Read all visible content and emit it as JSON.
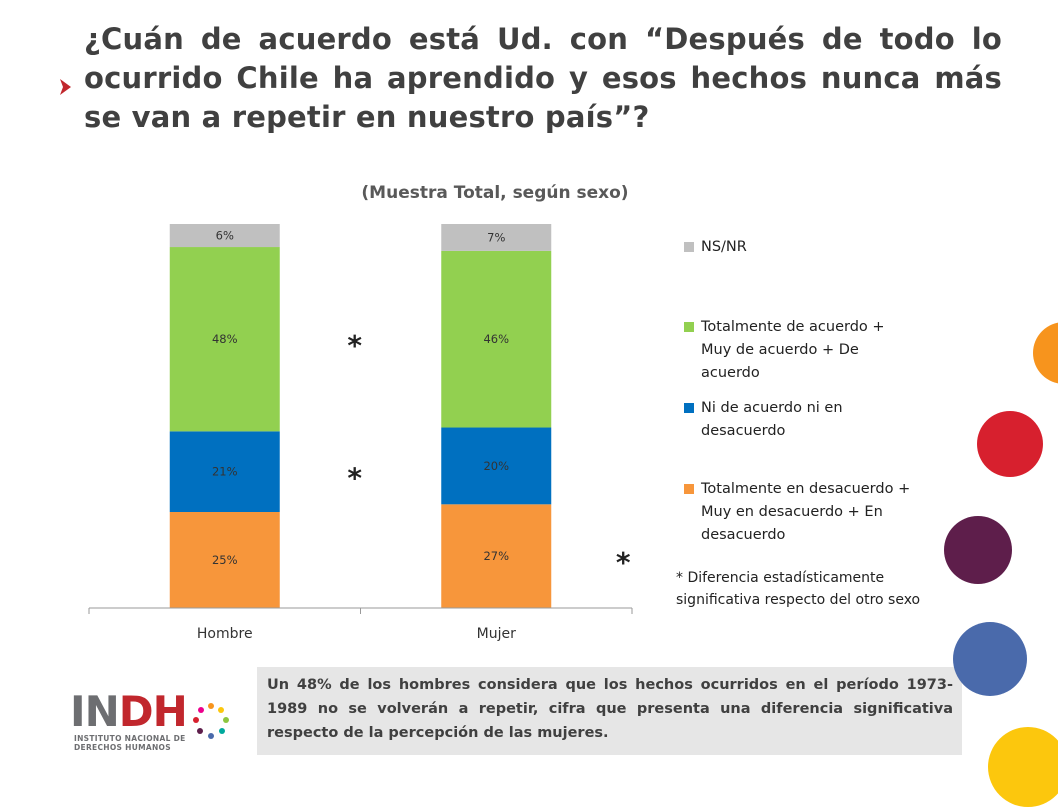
{
  "header": {
    "title": "¿Cuán de acuerdo está Ud. con “Después de todo lo ocurrido Chile ha aprendido y esos hechos nunca más se van a repetir en nuestro país”?"
  },
  "chart_data": {
    "type": "bar",
    "stacked": true,
    "title": "(Muestra Total, según sexo)",
    "categories": [
      "Hombre",
      "Mujer"
    ],
    "ylim": [
      0,
      100
    ],
    "grid": false,
    "legend_position": "right",
    "series": [
      {
        "name": "Totalmente en desacuerdo + Muy en desacuerdo + En desacuerdo",
        "color": "#f7963b",
        "values": [
          25,
          27
        ],
        "labels": [
          "25%",
          "27%"
        ]
      },
      {
        "name": "Ni de acuerdo ni en desacuerdo",
        "color": "#0070c0",
        "values": [
          21,
          20
        ],
        "labels": [
          "21%",
          "20%"
        ]
      },
      {
        "name": "Totalmente de acuerdo + Muy de acuerdo + De acuerdo",
        "color": "#92d050",
        "values": [
          48,
          46
        ],
        "labels": [
          "48%",
          "46%"
        ]
      },
      {
        "name": "NS/NR",
        "color": "#c0c0c0",
        "values": [
          6,
          7
        ],
        "labels": [
          "6%",
          "7%"
        ]
      }
    ],
    "legend_order": [
      "NS/NR",
      "Totalmente de acuerdo + Muy de acuerdo + De acuerdo",
      "Ni de acuerdo ni en desacuerdo",
      "Totalmente en desacuerdo + Muy en desacuerdo + En desacuerdo"
    ],
    "significance_marks": [
      {
        "category": "Hombre",
        "series": "Totalmente de acuerdo + Muy de acuerdo + De acuerdo",
        "mark": "*"
      },
      {
        "category": "Hombre",
        "series": "Ni de acuerdo ni en desacuerdo",
        "mark": "*"
      },
      {
        "category": "Mujer",
        "series": "Totalmente en desacuerdo + Muy en desacuerdo + En desacuerdo",
        "mark": "*"
      }
    ],
    "legend_lines": {
      "nsnr": [
        "NS/NR"
      ],
      "acuerdo": [
        "Totalmente de acuerdo +",
        "Muy de acuerdo + De",
        "acuerdo"
      ],
      "ni": [
        "Ni de acuerdo ni en",
        "desacuerdo"
      ],
      "desacuerdo": [
        "Totalmente en desacuerdo +",
        "Muy en desacuerdo + En",
        "desacuerdo"
      ]
    }
  },
  "footnote": {
    "line1": "* Diferencia estadísticamente",
    "line2": "significativa respecto del otro sexo"
  },
  "summary": {
    "text": "Un 48% de los hombres considera que los hechos ocurridos en el período 1973-1989 no se volverán a repetir, cifra que presenta una diferencia significativa respecto de la percepción de las mujeres."
  },
  "logo": {
    "main_prefix": "IN",
    "main_accent": "DH",
    "sub_line1": "INSTITUTO NACIONAL DE",
    "sub_line2": "DERECHOS HUMANOS"
  },
  "colors": {
    "title_arrow": "#c1272d",
    "deco_orange": "#f7941d",
    "deco_red": "#d7202e",
    "deco_purple": "#5e1e4b",
    "deco_blue": "#4a6aab",
    "deco_yellow": "#fcc70d"
  }
}
